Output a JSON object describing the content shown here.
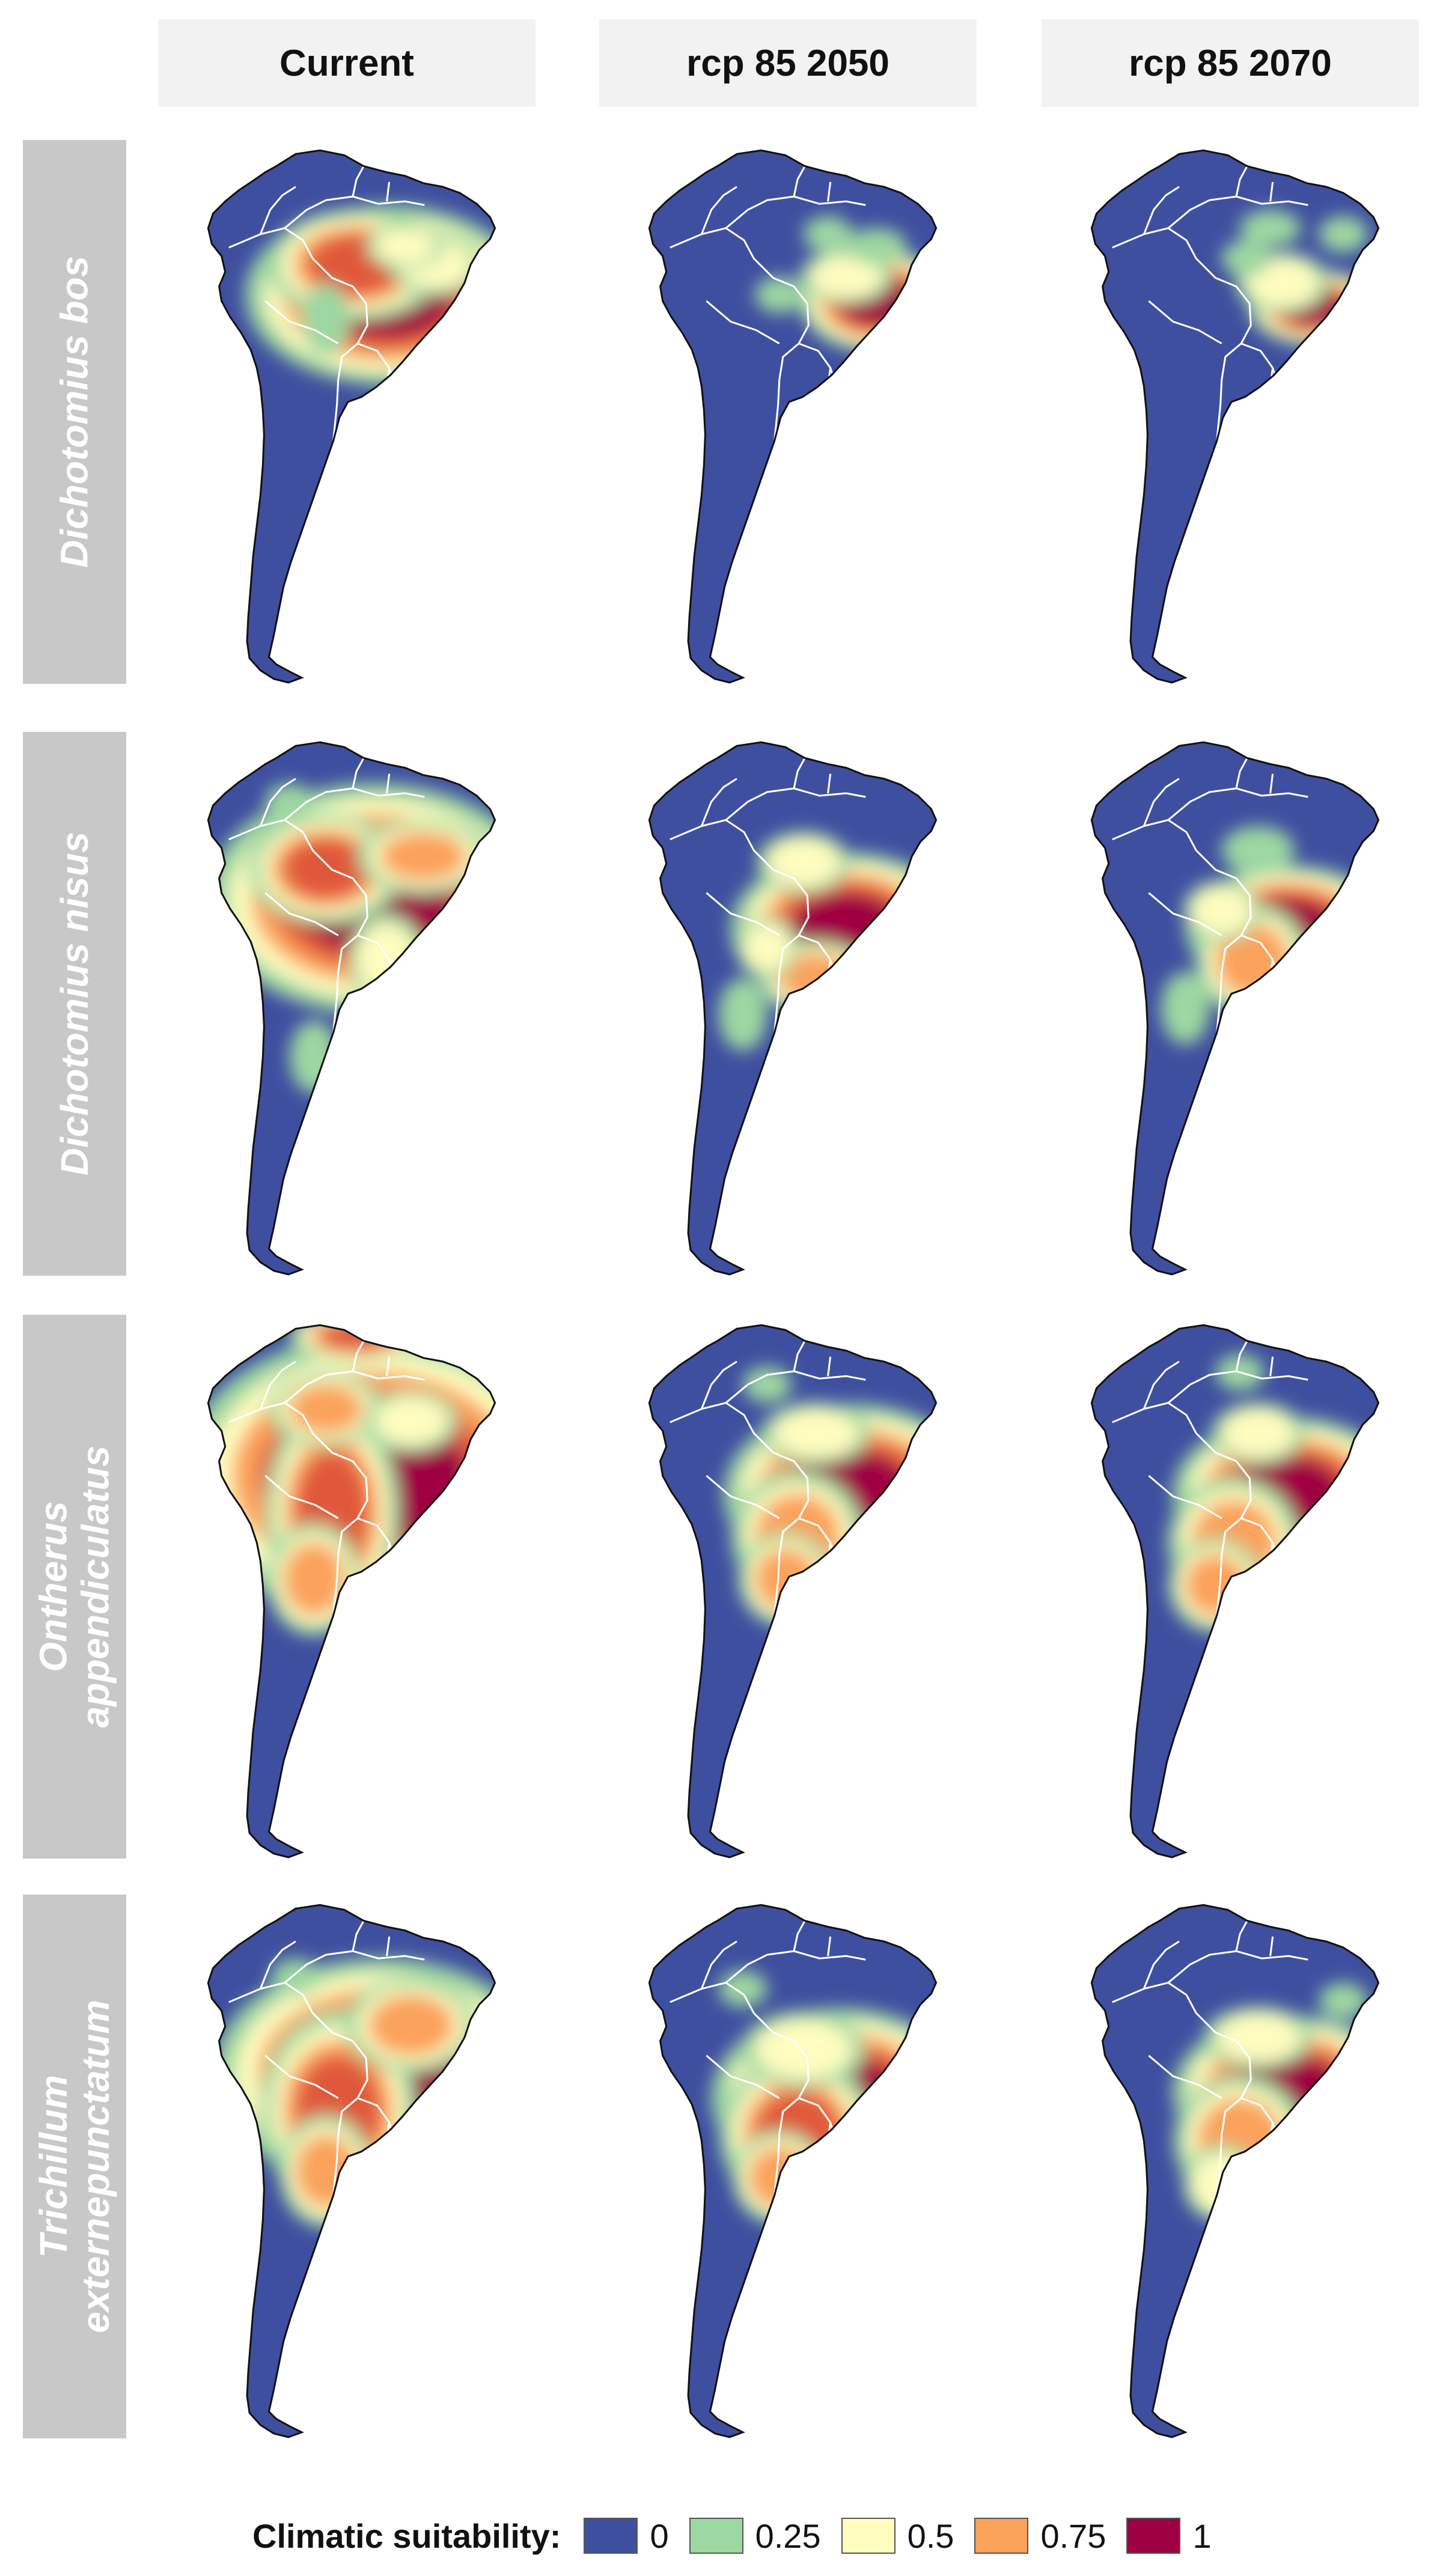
{
  "columns": [
    "Current",
    "rcp 85 2050",
    "rcp 85 2070"
  ],
  "rows": [
    {
      "species": "Dichotomius bos",
      "lines": [
        "Dichotomius bos"
      ]
    },
    {
      "species": "Dichotomius nisus",
      "lines": [
        "Dichotomius nisus"
      ]
    },
    {
      "species": "Ontherus appendiculatus",
      "lines": [
        "Ontherus",
        "appendiculatus"
      ]
    },
    {
      "species": "Trichillum externepunctatum",
      "lines": [
        "Trichillum",
        "externepunctatum"
      ]
    }
  ],
  "legend": {
    "title": "Climatic suitability:",
    "items": [
      {
        "label": "0",
        "color": "#3f4fa0"
      },
      {
        "label": "0.25",
        "color": "#9dd7a1"
      },
      {
        "label": "0.5",
        "color": "#fefcbf"
      },
      {
        "label": "0.75",
        "color": "#fba25b"
      },
      {
        "label": "1",
        "color": "#9e0142"
      }
    ]
  },
  "map_colors": {
    "base": "#3f4fa0",
    "border": "#ffffff",
    "coast": "#111111",
    "scale": [
      "#3f4fa0",
      "#5e8fb3",
      "#9dd7a1",
      "#fefcbf",
      "#fba25b",
      "#e0583a",
      "#9e0142"
    ]
  }
}
